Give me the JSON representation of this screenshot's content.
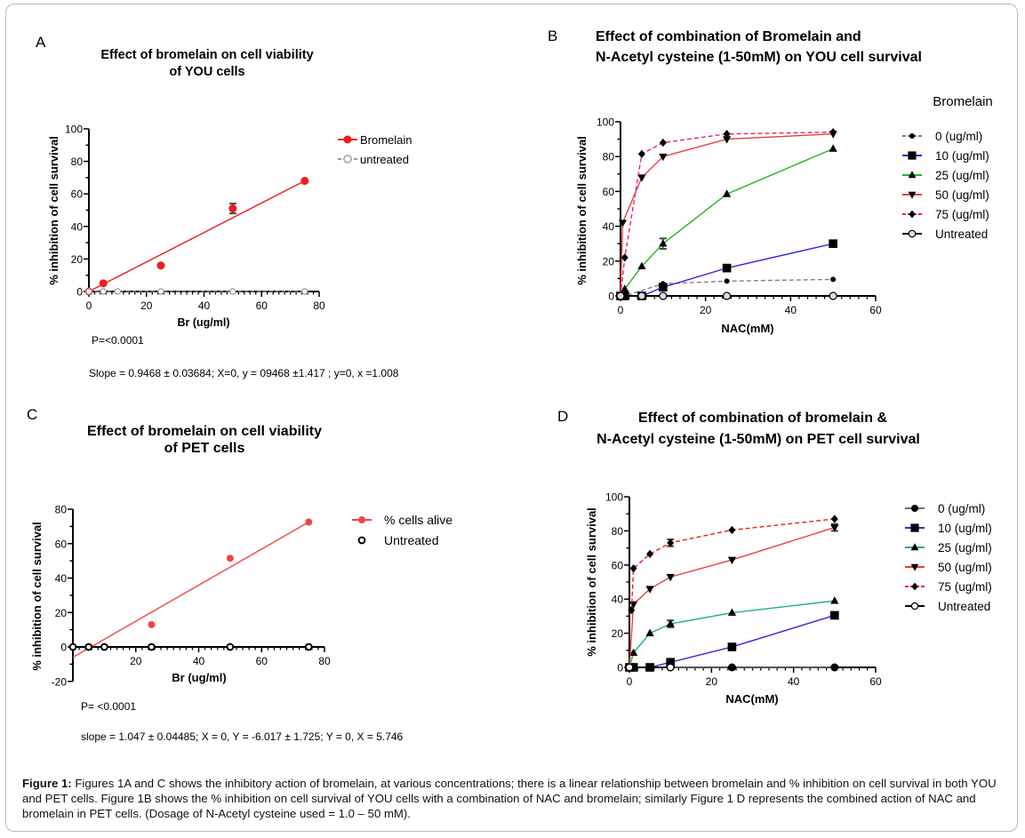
{
  "figure": {
    "caption_label": "Figure 1:",
    "caption_text": " Figures 1A and C shows the inhibitory action of bromelain, at various concentrations; there is a linear relationship between bromelain and % inhibition on cell survival in both YOU and PET cells. Figure 1B shows the % inhibition on cell survival of YOU cells with a combination of NAC and bromelain; similarly Figure 1 D represents the combined action of NAC and bromelain in PET cells. (Dosage of N-Acetyl cysteine used = 1.0 – 50 mM)."
  },
  "chart_data": [
    {
      "panel": "A",
      "type": "scatter",
      "title": [
        "Effect of bromelain on cell viability",
        "of YOU cells"
      ],
      "xlabel": "Br (ug/ml)",
      "ylabel": "% inhibition of cell survival",
      "xlim": [
        0,
        80
      ],
      "ylim": [
        0,
        100
      ],
      "xticks": [
        0,
        20,
        40,
        60,
        80
      ],
      "yticks": [
        0,
        20,
        40,
        60,
        80,
        100
      ],
      "grid": false,
      "legend": "top-right",
      "series": [
        {
          "name": "Bromelain",
          "color": "#ee1c1c",
          "marker": "circle-filled",
          "x": [
            0,
            5,
            25,
            50,
            75
          ],
          "y": [
            0,
            5,
            16,
            51,
            68
          ],
          "err": [
            0,
            0,
            0,
            3,
            0
          ],
          "fit": {
            "x": [
              0,
              75
            ],
            "y": [
              0,
              68
            ]
          }
        },
        {
          "name": "untreated",
          "color": "#9a9a9a",
          "marker": "circle-open",
          "line": "dashed",
          "x": [
            0,
            5,
            10,
            25,
            50,
            75
          ],
          "y": [
            0,
            0,
            0,
            0,
            0,
            0
          ]
        }
      ],
      "annotations": [
        "P=<0.0001",
        "Slope = 0.9468 ± 0.03684;   X=0, y = 09468 ±1.417 ;   y=0, x =1.008"
      ]
    },
    {
      "panel": "B",
      "type": "line",
      "title": [
        "Effect of combination of Bromelain and",
        "N-Acetyl cysteine (1-50mM) on YOU cell survival"
      ],
      "xlabel": "NAC(mM)",
      "ylabel": "% inhibition of cell survival",
      "xlim": [
        0,
        60
      ],
      "ylim": [
        0,
        100
      ],
      "xticks": [
        0,
        20,
        40,
        60
      ],
      "yticks": [
        0,
        20,
        40,
        60,
        80,
        100
      ],
      "grid": false,
      "legend": "right",
      "legend_title": "Bromelain",
      "series": [
        {
          "name": "0 (ug/ml)",
          "color": "#808080",
          "marker": "circle-filled",
          "line": "dashed",
          "x": [
            0,
            1,
            10,
            25,
            50
          ],
          "y": [
            0,
            0,
            7,
            8.5,
            9.5
          ]
        },
        {
          "name": "10 (ug/ml)",
          "color": "#2b2bdb",
          "marker": "square",
          "x": [
            0,
            1,
            5,
            10,
            25,
            50
          ],
          "y": [
            0,
            0,
            0,
            5,
            16,
            30
          ]
        },
        {
          "name": "25 (ug/ml)",
          "color": "#22b322",
          "marker": "triangle-up",
          "x": [
            0,
            1,
            5,
            10,
            25,
            50
          ],
          "y": [
            0,
            4,
            17,
            30,
            58.5,
            84.5
          ],
          "err": [
            0,
            0,
            0,
            3,
            0,
            0
          ]
        },
        {
          "name": "50 (ug/ml)",
          "color": "#e84040",
          "marker": "triangle-down",
          "x": [
            0,
            0.5,
            5,
            10,
            25,
            50
          ],
          "y": [
            0,
            42,
            68,
            80,
            90,
            93
          ]
        },
        {
          "name": "75 (ug/ml)",
          "color": "#e8237a",
          "marker": "diamond",
          "line": "dashed",
          "x": [
            0,
            1,
            5,
            10,
            25,
            50
          ],
          "y": [
            0,
            22,
            81.5,
            88,
            93,
            94
          ]
        },
        {
          "name": "Untreated",
          "color": "#000000",
          "marker": "circle-open-gray",
          "x": [
            0,
            5,
            10,
            25,
            50
          ],
          "y": [
            0,
            0,
            0,
            0,
            0
          ]
        }
      ]
    },
    {
      "panel": "C",
      "type": "scatter",
      "title": [
        "Effect of bromelain on cell viability",
        "of PET cells"
      ],
      "xlabel": "Br (ug/ml)",
      "ylabel": "% inhibition of cell survival",
      "xlim": [
        0,
        80
      ],
      "ylim": [
        -20,
        80
      ],
      "xticks": [
        20,
        40,
        60,
        80
      ],
      "yticks": [
        -20,
        0,
        20,
        40,
        60,
        80
      ],
      "grid": false,
      "legend": "top-right",
      "series": [
        {
          "name": "% cells alive",
          "color": "#f04545",
          "marker": "circle-filled",
          "x": [
            25,
            50,
            75
          ],
          "y": [
            13,
            51.5,
            72.5
          ],
          "fit": {
            "x": [
              0,
              75
            ],
            "y": [
              -6.017,
              72.5
            ]
          }
        },
        {
          "name": "Untreated",
          "color": "#000000",
          "marker": "circle-open-bold",
          "x": [
            0,
            5,
            10,
            25,
            50,
            75
          ],
          "y": [
            0,
            0,
            0,
            0,
            0,
            0
          ]
        }
      ],
      "annotations": [
        "P=  <0.0001",
        "slope = 1.047 ± 0.04485;  X = 0, Y = -6.017 ± 1.725;  Y = 0, X = 5.746"
      ]
    },
    {
      "panel": "D",
      "type": "line",
      "title": [
        "Effect of combination of bromelain &",
        "N-Acetyl cysteine (1-50mM) on PET cell survival"
      ],
      "xlabel": "NAC(mM)",
      "ylabel": "% inhibition of cell survival",
      "xlim": [
        0,
        60
      ],
      "ylim": [
        0,
        100
      ],
      "xticks": [
        0,
        20,
        40,
        60
      ],
      "yticks": [
        0,
        20,
        40,
        60,
        80,
        100
      ],
      "grid": false,
      "legend": "right",
      "series": [
        {
          "name": "0 (ug/ml)",
          "color": "#707070",
          "marker": "circle-filled",
          "x": [
            0,
            1,
            5,
            10,
            25,
            50
          ],
          "y": [
            0,
            0,
            0,
            0,
            0,
            0
          ]
        },
        {
          "name": "10 (ug/ml)",
          "color": "#2b2bdb",
          "marker": "square",
          "x": [
            0,
            1,
            5,
            10,
            25,
            50
          ],
          "y": [
            0,
            0,
            0,
            3,
            12,
            30.5
          ]
        },
        {
          "name": "25 (ug/ml)",
          "color": "#1fb36b",
          "marker": "triangle-up",
          "x": [
            0,
            1,
            5,
            10,
            25,
            50
          ],
          "y": [
            0,
            8.5,
            20,
            25.5,
            32,
            39
          ],
          "err": [
            0,
            0,
            0,
            2,
            0,
            0
          ]
        },
        {
          "name": "50 (ug/ml)",
          "color": "#e84040",
          "marker": "triangle-down",
          "x": [
            0,
            1,
            5,
            10,
            25,
            50
          ],
          "y": [
            0,
            37,
            46,
            53,
            63,
            82
          ],
          "err": [
            0,
            0,
            0,
            0,
            0,
            2
          ]
        },
        {
          "name": "75 (ug/ml)",
          "color": "#ee1c1c",
          "marker": "diamond",
          "line": "dashed",
          "x": [
            0.5,
            1,
            5,
            10,
            25,
            50
          ],
          "y": [
            33.5,
            58,
            66.5,
            73,
            80.5,
            87
          ],
          "err": [
            0,
            0,
            0,
            2,
            0,
            0
          ]
        },
        {
          "name": "Untreated",
          "color": "#000000",
          "marker": "circle-open",
          "x": [
            0,
            10
          ],
          "y": [
            0,
            0
          ]
        }
      ]
    }
  ]
}
